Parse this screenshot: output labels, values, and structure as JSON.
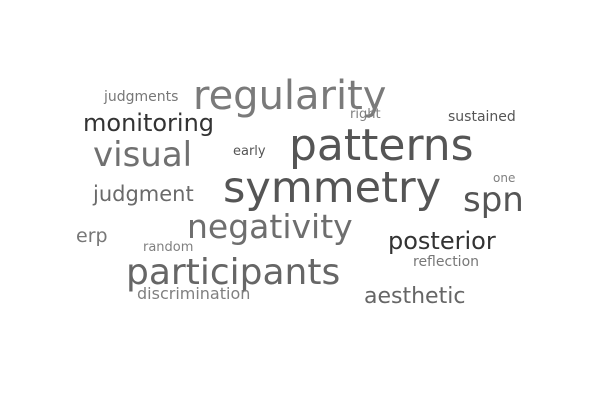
{
  "words": [
    {
      "text": "patterns",
      "color": "#555555"
    },
    {
      "text": "symmetry",
      "color": "#555555"
    },
    {
      "text": "regularity",
      "color": "#7a7a7a"
    },
    {
      "text": "participants",
      "color": "#666666"
    },
    {
      "text": "negativity",
      "color": "#6e6e6e"
    },
    {
      "text": "visual",
      "color": "#707070"
    },
    {
      "text": "spn",
      "color": "#555555"
    },
    {
      "text": "posterior",
      "color": "#333333"
    },
    {
      "text": "monitoring",
      "color": "#333333"
    },
    {
      "text": "aesthetic",
      "color": "#666666"
    },
    {
      "text": "judgment",
      "color": "#6a6a6a"
    },
    {
      "text": "erp",
      "color": "#777777"
    },
    {
      "text": "discrimination",
      "color": "#808080"
    },
    {
      "text": "judgments",
      "color": "#777777"
    },
    {
      "text": "sustained",
      "color": "#555555"
    },
    {
      "text": "reflection",
      "color": "#777777"
    },
    {
      "text": "right",
      "color": "#808080"
    },
    {
      "text": "early",
      "color": "#555555"
    },
    {
      "text": "random",
      "color": "#808080"
    },
    {
      "text": "one",
      "color": "#808080"
    }
  ]
}
